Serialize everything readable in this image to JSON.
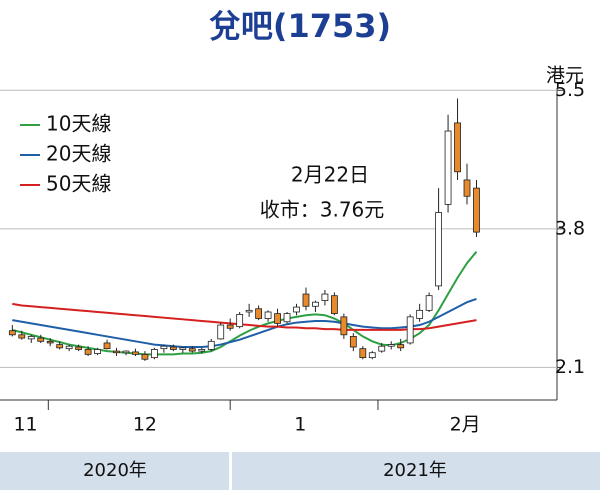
{
  "chart_data": {
    "type": "candlestick",
    "title": "兌吧(1753)",
    "y_unit": "港元",
    "annotations": [
      "2月22日",
      "收市：3.76元"
    ],
    "up_color": "#ffffff",
    "down_color": "#e8892b",
    "open": [
      2.55,
      2.5,
      2.45,
      2.46,
      2.42,
      2.38,
      2.33,
      2.35,
      2.32,
      2.27,
      2.4,
      2.3,
      2.28,
      2.29,
      2.26,
      2.22,
      2.33,
      2.35,
      2.32,
      2.33,
      2.3,
      2.32,
      2.45,
      2.62,
      2.6,
      2.78,
      2.82,
      2.7,
      2.76,
      2.66,
      2.78,
      3.0,
      2.85,
      2.92,
      2.98,
      2.72,
      2.48,
      2.33,
      2.22,
      2.3,
      2.36,
      2.38,
      2.4,
      2.7,
      2.8,
      3.1,
      4.1,
      5.1,
      4.4,
      4.3
    ],
    "high": [
      2.62,
      2.55,
      2.5,
      2.5,
      2.46,
      2.42,
      2.38,
      2.38,
      2.36,
      2.34,
      2.44,
      2.34,
      2.31,
      2.33,
      2.3,
      2.34,
      2.38,
      2.38,
      2.35,
      2.36,
      2.34,
      2.45,
      2.65,
      2.7,
      2.78,
      2.88,
      2.86,
      2.8,
      2.82,
      2.78,
      2.88,
      3.08,
      2.92,
      3.05,
      3.02,
      2.76,
      2.52,
      2.36,
      2.3,
      2.4,
      2.42,
      2.45,
      2.75,
      2.88,
      3.02,
      4.3,
      5.2,
      5.4,
      4.6,
      4.4
    ],
    "low": [
      2.48,
      2.44,
      2.4,
      2.4,
      2.36,
      2.32,
      2.3,
      2.3,
      2.24,
      2.25,
      2.32,
      2.24,
      2.25,
      2.24,
      2.18,
      2.2,
      2.28,
      2.3,
      2.28,
      2.28,
      2.27,
      2.3,
      2.44,
      2.55,
      2.58,
      2.72,
      2.68,
      2.66,
      2.6,
      2.64,
      2.74,
      2.8,
      2.78,
      2.86,
      2.74,
      2.45,
      2.3,
      2.2,
      2.2,
      2.28,
      2.32,
      2.3,
      2.38,
      2.66,
      2.78,
      3.05,
      4.0,
      4.4,
      4.1,
      3.7
    ],
    "close": [
      2.5,
      2.46,
      2.48,
      2.42,
      2.4,
      2.34,
      2.36,
      2.32,
      2.26,
      2.32,
      2.33,
      2.28,
      2.3,
      2.26,
      2.2,
      2.32,
      2.36,
      2.32,
      2.34,
      2.3,
      2.32,
      2.42,
      2.62,
      2.58,
      2.75,
      2.8,
      2.7,
      2.78,
      2.64,
      2.76,
      2.84,
      2.85,
      2.9,
      3.0,
      2.76,
      2.5,
      2.35,
      2.22,
      2.28,
      2.36,
      2.38,
      2.34,
      2.72,
      2.8,
      2.98,
      4.0,
      5.0,
      4.5,
      4.2,
      3.76
    ],
    "series": [
      {
        "name": "10天線",
        "color": "#2ea043",
        "values": [
          2.56,
          2.53,
          2.5,
          2.47,
          2.44,
          2.41,
          2.38,
          2.36,
          2.34,
          2.32,
          2.3,
          2.29,
          2.28,
          2.27,
          2.26,
          2.26,
          2.26,
          2.26,
          2.27,
          2.27,
          2.28,
          2.3,
          2.35,
          2.42,
          2.49,
          2.55,
          2.6,
          2.64,
          2.67,
          2.7,
          2.72,
          2.74,
          2.75,
          2.74,
          2.7,
          2.64,
          2.56,
          2.48,
          2.42,
          2.38,
          2.37,
          2.4,
          2.45,
          2.52,
          2.62,
          2.8,
          3.0,
          3.2,
          3.38,
          3.52
        ]
      },
      {
        "name": "20天線",
        "color": "#1f5fa8",
        "values": [
          2.68,
          2.66,
          2.64,
          2.62,
          2.6,
          2.58,
          2.56,
          2.54,
          2.52,
          2.5,
          2.48,
          2.46,
          2.44,
          2.42,
          2.4,
          2.38,
          2.37,
          2.36,
          2.35,
          2.35,
          2.35,
          2.36,
          2.38,
          2.41,
          2.44,
          2.48,
          2.52,
          2.56,
          2.6,
          2.63,
          2.65,
          2.66,
          2.67,
          2.67,
          2.66,
          2.64,
          2.62,
          2.6,
          2.59,
          2.58,
          2.58,
          2.59,
          2.6,
          2.62,
          2.66,
          2.72,
          2.78,
          2.84,
          2.9,
          2.94
        ]
      },
      {
        "name": "50天線",
        "color": "#d62020",
        "values": [
          2.88,
          2.86,
          2.85,
          2.84,
          2.83,
          2.82,
          2.81,
          2.8,
          2.79,
          2.78,
          2.77,
          2.76,
          2.75,
          2.74,
          2.73,
          2.72,
          2.71,
          2.7,
          2.69,
          2.68,
          2.67,
          2.66,
          2.65,
          2.64,
          2.63,
          2.62,
          2.61,
          2.6,
          2.6,
          2.59,
          2.59,
          2.58,
          2.58,
          2.57,
          2.57,
          2.56,
          2.56,
          2.56,
          2.56,
          2.56,
          2.56,
          2.56,
          2.57,
          2.57,
          2.58,
          2.6,
          2.62,
          2.64,
          2.66,
          2.68
        ]
      }
    ],
    "xlim": [
      -1.3,
      57.5
    ],
    "xticks": [
      {
        "value": 1.4,
        "label": "11"
      },
      {
        "value": 14,
        "label": "12"
      },
      {
        "value": 30.4,
        "label": "1"
      },
      {
        "value": 47.8,
        "label": "2月"
      }
    ],
    "separators": [
      3.8,
      23,
      38.6
    ],
    "ylim": [
      1.7,
      5.7
    ],
    "yticks": [
      2.1,
      3.8,
      5.5
    ],
    "grid": true,
    "years": [
      "2020年",
      "2021年"
    ]
  }
}
